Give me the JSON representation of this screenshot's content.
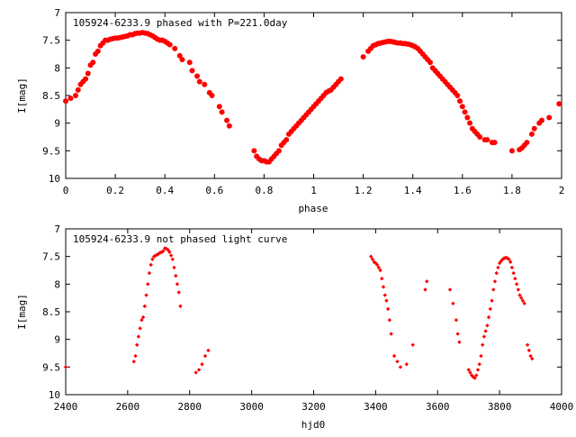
{
  "chart_data": [
    {
      "type": "scatter",
      "title": "105924-6233.9 phased with P=221.0day",
      "xlabel": "phase",
      "ylabel": "I[mag]",
      "xlim": [
        0,
        2
      ],
      "ylim": [
        10,
        7
      ],
      "y_inverted": true,
      "xticks": [
        "0",
        "0.2",
        "0.4",
        "0.6",
        "0.8",
        "1",
        "1.2",
        "1.4",
        "1.6",
        "1.8",
        "2"
      ],
      "yticks": [
        "7",
        "7.5",
        "8",
        "8.5",
        "9",
        "9.5",
        "10"
      ],
      "marker": "filled-circle",
      "color": "#ff0000",
      "grid": false,
      "series": [
        {
          "x": [
            0.0,
            0.02,
            0.04,
            0.05,
            0.06,
            0.07,
            0.08,
            0.09,
            0.1,
            0.11,
            0.12,
            0.13,
            0.14,
            0.15,
            0.16,
            0.17,
            0.18,
            0.19,
            0.2,
            0.21,
            0.22,
            0.23,
            0.24,
            0.25,
            0.26,
            0.27,
            0.28,
            0.29,
            0.3,
            0.31,
            0.32,
            0.33,
            0.34,
            0.35,
            0.36,
            0.37,
            0.38,
            0.39,
            0.4,
            0.41,
            0.42,
            0.44,
            0.46,
            0.47,
            0.5,
            0.51,
            0.53,
            0.54,
            0.56,
            0.58,
            0.59,
            0.62,
            0.63,
            0.65,
            0.66,
            0.76,
            0.77,
            0.78,
            0.79,
            0.8,
            0.81,
            0.82,
            0.83,
            0.84,
            0.85,
            0.86,
            0.87,
            0.88,
            0.89,
            0.9,
            0.91,
            0.92,
            0.93,
            0.94,
            0.95,
            0.96,
            0.97,
            0.98,
            0.99,
            1.0,
            1.01,
            1.02,
            1.03,
            1.04,
            1.05,
            1.06,
            1.07,
            1.08,
            1.09,
            1.1,
            1.11,
            1.2,
            1.22,
            1.23,
            1.24,
            1.25,
            1.26,
            1.27,
            1.28,
            1.29,
            1.3,
            1.31,
            1.32,
            1.33,
            1.34,
            1.35,
            1.36,
            1.37,
            1.38,
            1.39,
            1.4,
            1.41,
            1.42,
            1.43,
            1.44,
            1.45,
            1.46,
            1.47,
            1.48,
            1.49,
            1.5,
            1.51,
            1.52,
            1.53,
            1.54,
            1.55,
            1.56,
            1.57,
            1.58,
            1.59,
            1.6,
            1.61,
            1.62,
            1.63,
            1.64,
            1.65,
            1.66,
            1.67,
            1.69,
            1.7,
            1.72,
            1.73,
            1.8,
            1.83,
            1.84,
            1.85,
            1.86,
            1.88,
            1.89,
            1.91,
            1.92,
            1.95,
            1.99
          ],
          "y": [
            8.6,
            8.55,
            8.5,
            8.4,
            8.3,
            8.25,
            8.2,
            8.1,
            7.95,
            7.9,
            7.75,
            7.7,
            7.6,
            7.55,
            7.5,
            7.5,
            7.48,
            7.47,
            7.46,
            7.46,
            7.45,
            7.44,
            7.43,
            7.42,
            7.4,
            7.4,
            7.38,
            7.37,
            7.37,
            7.36,
            7.37,
            7.38,
            7.4,
            7.42,
            7.45,
            7.48,
            7.5,
            7.5,
            7.52,
            7.55,
            7.58,
            7.65,
            7.78,
            7.85,
            7.9,
            8.05,
            8.15,
            8.25,
            8.3,
            8.45,
            8.5,
            8.7,
            8.8,
            8.95,
            9.05,
            9.5,
            9.6,
            9.65,
            9.68,
            9.68,
            9.7,
            9.7,
            9.65,
            9.6,
            9.55,
            9.5,
            9.4,
            9.35,
            9.3,
            9.2,
            9.15,
            9.1,
            9.05,
            9.0,
            8.95,
            8.9,
            8.85,
            8.8,
            8.75,
            8.7,
            8.65,
            8.6,
            8.55,
            8.5,
            8.45,
            8.42,
            8.4,
            8.35,
            8.3,
            8.25,
            8.2,
            7.8,
            7.7,
            7.65,
            7.6,
            7.58,
            7.56,
            7.55,
            7.54,
            7.53,
            7.52,
            7.52,
            7.53,
            7.54,
            7.55,
            7.55,
            7.56,
            7.56,
            7.57,
            7.58,
            7.6,
            7.62,
            7.65,
            7.7,
            7.75,
            7.8,
            7.85,
            7.9,
            8.0,
            8.05,
            8.1,
            8.15,
            8.2,
            8.25,
            8.3,
            8.35,
            8.4,
            8.45,
            8.5,
            8.6,
            8.7,
            8.8,
            8.9,
            9.0,
            9.1,
            9.15,
            9.2,
            9.25,
            9.3,
            9.3,
            9.35,
            9.35,
            9.5,
            9.48,
            9.45,
            9.4,
            9.35,
            9.2,
            9.1,
            9.0,
            8.95,
            8.9,
            8.65
          ]
        }
      ]
    },
    {
      "type": "scatter",
      "title": "105924-6233.9 not phased light curve",
      "xlabel": "hjd0",
      "ylabel": "I[mag]",
      "xlim": [
        2400,
        4000
      ],
      "ylim": [
        10,
        7
      ],
      "y_inverted": true,
      "xticks": [
        "2400",
        "2600",
        "2800",
        "3000",
        "3200",
        "3400",
        "3600",
        "3800",
        "4000"
      ],
      "yticks": [
        "7",
        "7.5",
        "8",
        "8.5",
        "9",
        "9.5",
        "10"
      ],
      "marker": "small-diamond",
      "color": "#ff0000",
      "grid": false,
      "series": [
        {
          "x": [
            2400,
            2620,
            2625,
            2630,
            2635,
            2640,
            2645,
            2650,
            2655,
            2660,
            2665,
            2670,
            2675,
            2680,
            2685,
            2690,
            2695,
            2700,
            2705,
            2710,
            2715,
            2720,
            2725,
            2730,
            2735,
            2740,
            2745,
            2750,
            2755,
            2760,
            2765,
            2770,
            2820,
            2830,
            2840,
            2850,
            2860,
            3385,
            3390,
            3395,
            3400,
            3405,
            3410,
            3415,
            3420,
            3425,
            3430,
            3435,
            3440,
            3445,
            3450,
            3460,
            3470,
            3480,
            3500,
            3520,
            3560,
            3565,
            3640,
            3650,
            3660,
            3665,
            3670,
            3700,
            3705,
            3710,
            3715,
            3720,
            3725,
            3730,
            3735,
            3740,
            3745,
            3750,
            3755,
            3760,
            3765,
            3770,
            3775,
            3780,
            3785,
            3790,
            3795,
            3800,
            3805,
            3810,
            3815,
            3820,
            3825,
            3830,
            3835,
            3840,
            3845,
            3850,
            3855,
            3860,
            3865,
            3870,
            3875,
            3880,
            3890,
            3895,
            3900,
            3905
          ],
          "y": [
            9.5,
            9.4,
            9.3,
            9.1,
            8.95,
            8.8,
            8.65,
            8.6,
            8.4,
            8.2,
            8.0,
            7.8,
            7.65,
            7.55,
            7.5,
            7.48,
            7.47,
            7.45,
            7.43,
            7.42,
            7.4,
            7.35,
            7.36,
            7.38,
            7.42,
            7.48,
            7.55,
            7.7,
            7.85,
            8.0,
            8.15,
            8.4,
            9.6,
            9.55,
            9.45,
            9.3,
            9.2,
            7.5,
            7.55,
            7.6,
            7.62,
            7.65,
            7.7,
            7.75,
            7.9,
            8.05,
            8.2,
            8.3,
            8.45,
            8.65,
            8.9,
            9.3,
            9.4,
            9.5,
            9.45,
            9.1,
            8.1,
            7.95,
            8.1,
            8.35,
            8.65,
            8.9,
            9.05,
            9.55,
            9.6,
            9.65,
            9.68,
            9.7,
            9.65,
            9.55,
            9.45,
            9.3,
            9.1,
            8.95,
            8.85,
            8.75,
            8.6,
            8.45,
            8.3,
            8.1,
            7.95,
            7.8,
            7.7,
            7.62,
            7.58,
            7.55,
            7.53,
            7.52,
            7.53,
            7.55,
            7.6,
            7.7,
            7.8,
            7.9,
            8.0,
            8.1,
            8.2,
            8.25,
            8.3,
            8.35,
            9.1,
            9.2,
            9.3,
            9.35
          ]
        }
      ]
    }
  ]
}
